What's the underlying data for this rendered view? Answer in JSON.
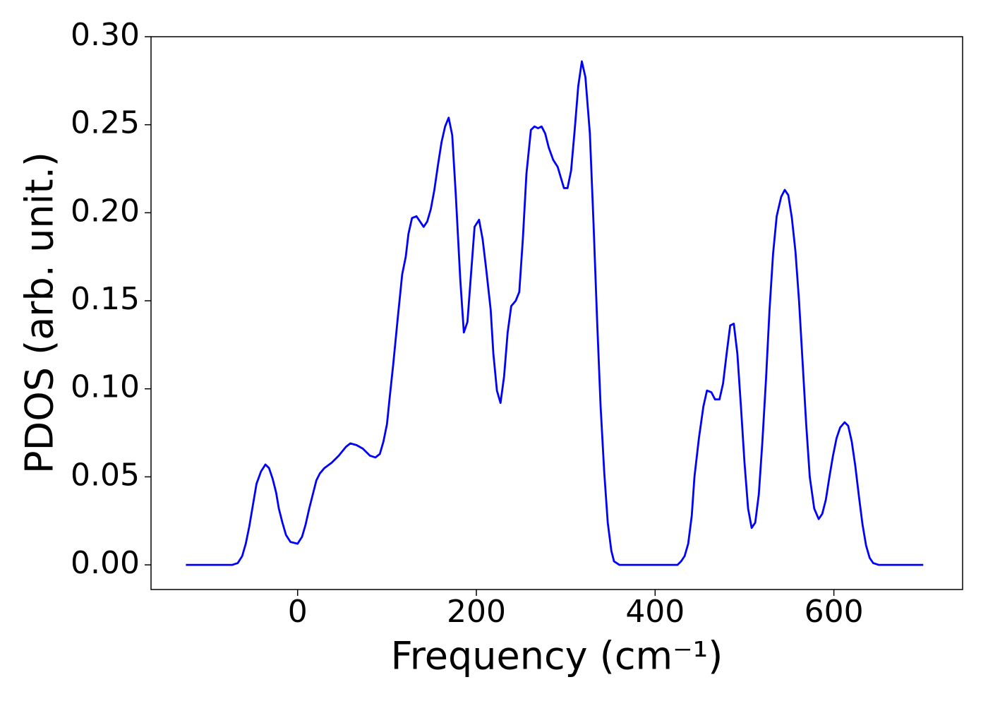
{
  "chart_data": {
    "type": "line",
    "x_label": "Frequency (cm⁻¹)",
    "y_label": "PDOS (arb. unit.)",
    "color": "#0000ff",
    "xlim": [
      -164,
      744
    ],
    "ylim": [
      -0.014,
      0.3
    ],
    "xticks": [
      0,
      200,
      400,
      600
    ],
    "yticks": [
      {
        "value": 0,
        "label": "0.00"
      },
      0.05,
      {
        "value": 0.1,
        "label": "0.10"
      },
      0.15,
      {
        "value": 0.2,
        "label": "0.20"
      },
      0.25,
      {
        "value": 0.3,
        "label": "0.30"
      }
    ],
    "grid": false,
    "x": [
      -125,
      -73,
      -67,
      -62,
      -58,
      -54,
      -50,
      -46,
      -41,
      -36,
      -32,
      -28,
      -24,
      -21,
      -17,
      -13,
      -8,
      0,
      5,
      9,
      13,
      17,
      21,
      25,
      30,
      38,
      46,
      54,
      59,
      66,
      73,
      81,
      87,
      92,
      96,
      100,
      103,
      107,
      112,
      117,
      121,
      124,
      128,
      133,
      137,
      141,
      145,
      149,
      153,
      157,
      161,
      165,
      169,
      173,
      177,
      182,
      186,
      190,
      194,
      198,
      203,
      207,
      211,
      216,
      219,
      223,
      227,
      231,
      235,
      239,
      244,
      248,
      252,
      256,
      261,
      265,
      269,
      273,
      277,
      281,
      286,
      291,
      298,
      302,
      306,
      310,
      314,
      318,
      322,
      327,
      331,
      335,
      339,
      343,
      347,
      351,
      354,
      360,
      425,
      429,
      433,
      437,
      441,
      444,
      449,
      454,
      458,
      463,
      467,
      472,
      476,
      480,
      484,
      488,
      492,
      496,
      500,
      504,
      508,
      512,
      516,
      520,
      524,
      528,
      532,
      536,
      541,
      545,
      549,
      553,
      557,
      561,
      565,
      569,
      573,
      578,
      583,
      587,
      591,
      595,
      599,
      603,
      607,
      612,
      616,
      620,
      624,
      628,
      632,
      636,
      640,
      644,
      650,
      700
    ],
    "values": [
      0,
      0,
      0.001,
      0.005,
      0.012,
      0.022,
      0.034,
      0.046,
      0.053,
      0.057,
      0.055,
      0.049,
      0.041,
      0.032,
      0.024,
      0.017,
      0.013,
      0.012,
      0.016,
      0.023,
      0.032,
      0.04,
      0.048,
      0.052,
      0.055,
      0.058,
      0.062,
      0.067,
      0.069,
      0.068,
      0.066,
      0.062,
      0.061,
      0.063,
      0.07,
      0.08,
      0.095,
      0.114,
      0.14,
      0.165,
      0.175,
      0.188,
      0.197,
      0.198,
      0.195,
      0.192,
      0.195,
      0.202,
      0.213,
      0.227,
      0.24,
      0.249,
      0.254,
      0.244,
      0.21,
      0.162,
      0.132,
      0.138,
      0.165,
      0.192,
      0.196,
      0.185,
      0.168,
      0.145,
      0.12,
      0.099,
      0.092,
      0.107,
      0.132,
      0.147,
      0.15,
      0.155,
      0.185,
      0.222,
      0.247,
      0.249,
      0.248,
      0.249,
      0.245,
      0.237,
      0.23,
      0.226,
      0.214,
      0.214,
      0.224,
      0.247,
      0.272,
      0.286,
      0.277,
      0.245,
      0.195,
      0.14,
      0.09,
      0.053,
      0.024,
      0.008,
      0.002,
      0,
      0,
      0.002,
      0.005,
      0.012,
      0.028,
      0.05,
      0.072,
      0.09,
      0.099,
      0.098,
      0.094,
      0.094,
      0.103,
      0.12,
      0.136,
      0.137,
      0.12,
      0.09,
      0.058,
      0.032,
      0.021,
      0.024,
      0.04,
      0.07,
      0.105,
      0.145,
      0.177,
      0.198,
      0.209,
      0.213,
      0.21,
      0.197,
      0.178,
      0.15,
      0.115,
      0.08,
      0.05,
      0.032,
      0.026,
      0.029,
      0.037,
      0.05,
      0.062,
      0.072,
      0.078,
      0.081,
      0.079,
      0.07,
      0.056,
      0.039,
      0.023,
      0.011,
      0.004,
      0.001,
      0,
      0
    ]
  }
}
